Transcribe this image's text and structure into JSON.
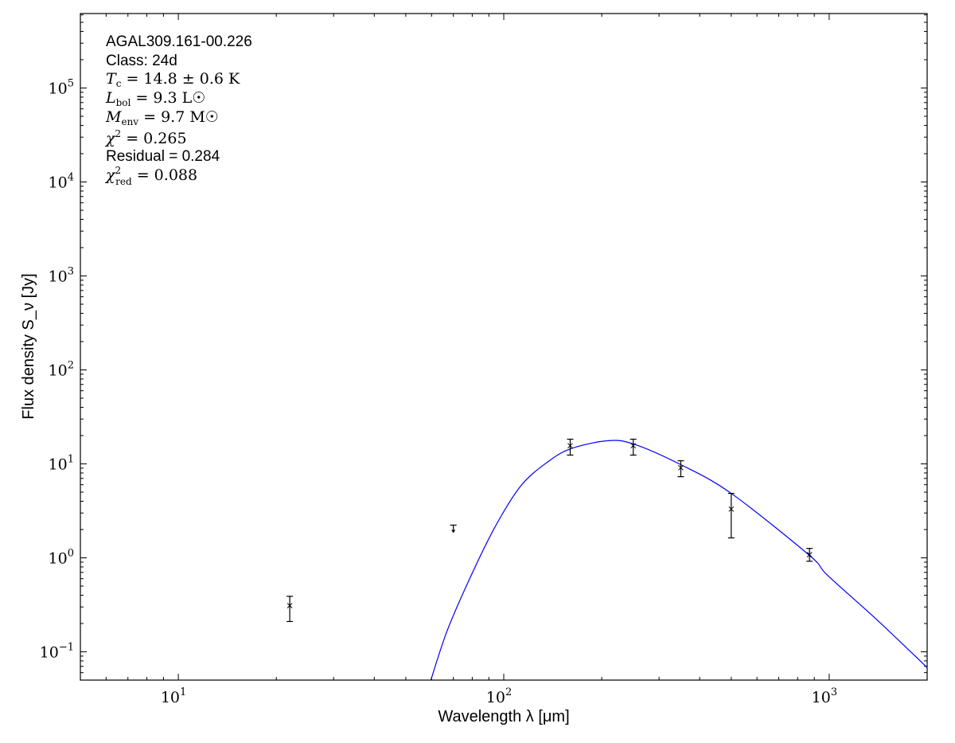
{
  "chart_data": {
    "type": "scatter",
    "xlabel": "Wavelength λ [μm]",
    "ylabel": "Flux density S_ν [Jy]",
    "xscale": "log",
    "yscale": "log",
    "xlim": [
      5,
      2000
    ],
    "ylim": [
      0.05,
      620000
    ],
    "grid": false,
    "x_ticks": [
      {
        "v": 10,
        "label": "10",
        "exp": "1"
      },
      {
        "v": 100,
        "label": "10",
        "exp": "2"
      },
      {
        "v": 1000,
        "label": "10",
        "exp": "3"
      }
    ],
    "y_ticks": [
      {
        "v": 0.1,
        "label": "10",
        "exp": "−1"
      },
      {
        "v": 1,
        "label": "10",
        "exp": "0"
      },
      {
        "v": 10,
        "label": "10",
        "exp": "1"
      },
      {
        "v": 100,
        "label": "10",
        "exp": "2"
      },
      {
        "v": 1000,
        "label": "10",
        "exp": "3"
      },
      {
        "v": 10000,
        "label": "10",
        "exp": "4"
      },
      {
        "v": 100000,
        "label": "10",
        "exp": "5"
      }
    ],
    "annotations": {
      "source": "AGAL309.161-00.226",
      "class": "Class: 24d",
      "tc": {
        "sym": "T",
        "sub": "c",
        "rest": " = 14.8 ± 0.6 K"
      },
      "lbol": {
        "sym": "L",
        "sub": "bol",
        "rest": " = 9.3 L☉"
      },
      "menv": {
        "sym": "M",
        "sub": "env",
        "rest": " = 9.7 M☉"
      },
      "chi2": {
        "sym": "χ",
        "sup": "2",
        "rest": " = 0.265"
      },
      "residual": "Residual = 0.284",
      "chi2red": {
        "sym": "χ",
        "sup": "2",
        "sub": "red",
        "rest": " = 0.088"
      }
    },
    "points": [
      {
        "x": 22,
        "y": 0.31,
        "lo": 0.21,
        "hi": 0.39
      },
      {
        "x": 160,
        "y": 15.6,
        "lo": 12.4,
        "hi": 18.3
      },
      {
        "x": 250,
        "y": 15.6,
        "lo": 12.4,
        "hi": 18.3
      },
      {
        "x": 350,
        "y": 9.1,
        "lo": 7.3,
        "hi": 10.8
      },
      {
        "x": 500,
        "y": 3.3,
        "lo": 1.63,
        "hi": 4.85
      },
      {
        "x": 870,
        "y": 1.08,
        "lo": 0.92,
        "hi": 1.26
      }
    ],
    "upper_limits": [
      {
        "x": 70,
        "y": 2.23
      }
    ],
    "model": {
      "color": "#0000ff",
      "x": [
        59.7,
        66.8,
        77.8,
        93.5,
        112.7,
        136,
        160.8,
        208,
        250,
        350,
        500,
        870,
        985,
        1400,
        2000
      ],
      "y": [
        0.05,
        0.163,
        0.557,
        2.06,
        5.8,
        10.4,
        14.5,
        17.6,
        16.3,
        9.8,
        4.85,
        1.06,
        0.66,
        0.22,
        0.068
      ]
    },
    "marker_color": "#000000"
  }
}
